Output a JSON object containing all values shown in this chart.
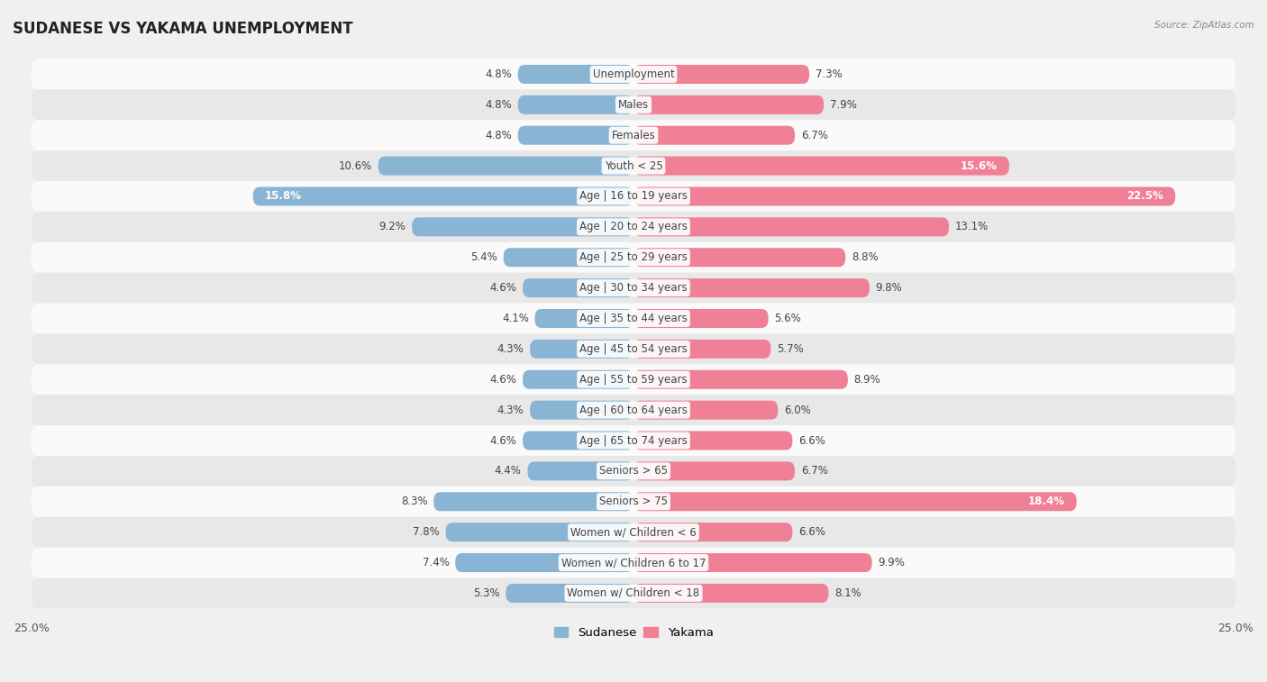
{
  "title": "SUDANESE VS YAKAMA UNEMPLOYMENT",
  "source": "Source: ZipAtlas.com",
  "categories": [
    "Unemployment",
    "Males",
    "Females",
    "Youth < 25",
    "Age | 16 to 19 years",
    "Age | 20 to 24 years",
    "Age | 25 to 29 years",
    "Age | 30 to 34 years",
    "Age | 35 to 44 years",
    "Age | 45 to 54 years",
    "Age | 55 to 59 years",
    "Age | 60 to 64 years",
    "Age | 65 to 74 years",
    "Seniors > 65",
    "Seniors > 75",
    "Women w/ Children < 6",
    "Women w/ Children 6 to 17",
    "Women w/ Children < 18"
  ],
  "sudanese": [
    4.8,
    4.8,
    4.8,
    10.6,
    15.8,
    9.2,
    5.4,
    4.6,
    4.1,
    4.3,
    4.6,
    4.3,
    4.6,
    4.4,
    8.3,
    7.8,
    7.4,
    5.3
  ],
  "yakama": [
    7.3,
    7.9,
    6.7,
    15.6,
    22.5,
    13.1,
    8.8,
    9.8,
    5.6,
    5.7,
    8.9,
    6.0,
    6.6,
    6.7,
    18.4,
    6.6,
    9.9,
    8.1
  ],
  "max_val": 25.0,
  "sudanese_color": "#8ab4d4",
  "yakama_color": "#f08096",
  "sudanese_label": "Sudanese",
  "yakama_label": "Yakama",
  "bg_color": "#f0f0f0",
  "row_even_color": "#fafafa",
  "row_odd_color": "#e8e8e8",
  "title_fontsize": 12,
  "label_fontsize": 8.5,
  "value_fontsize": 8.5,
  "large_threshold_sud": 12.0,
  "large_threshold_yak": 14.0
}
